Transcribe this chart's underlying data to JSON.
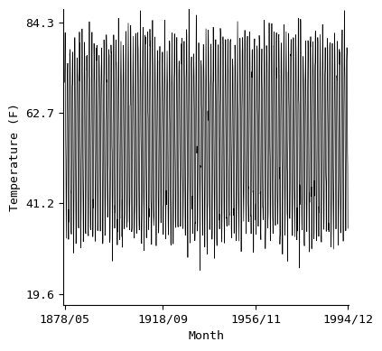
{
  "title": "",
  "xlabel": "Month",
  "ylabel": "Temperature (F)",
  "x_tick_labels": [
    "1878/05",
    "1918/09",
    "1956/11",
    "1994/12"
  ],
  "y_tick_values": [
    19.6,
    41.2,
    62.7,
    84.3
  ],
  "start_year": 1878,
  "start_month": 5,
  "end_year": 1994,
  "end_month": 12,
  "mean_temp": 57.0,
  "amplitude": 22.5,
  "noise_std": 3.5,
  "line_color": "#000000",
  "line_width": 0.5,
  "bg_color": "#ffffff",
  "ylim": [
    17.0,
    87.5
  ],
  "font_family": "monospace",
  "font_size": 9.5
}
